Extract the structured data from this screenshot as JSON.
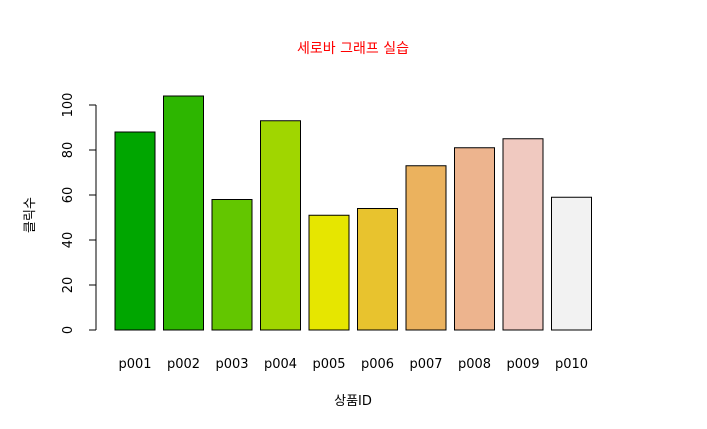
{
  "chart_data": {
    "type": "bar",
    "title": "세로바 그래프 실습",
    "xlabel": "상품ID",
    "ylabel": "클릭수",
    "categories": [
      "p001",
      "p002",
      "p003",
      "p004",
      "p005",
      "p006",
      "p007",
      "p008",
      "p009",
      "p010"
    ],
    "values": [
      88,
      104,
      58,
      93,
      51,
      54,
      73,
      81,
      85,
      59
    ],
    "colors": [
      "#00a600",
      "#2db600",
      "#63c600",
      "#a0d600",
      "#e6e600",
      "#e8c32e",
      "#ebb25e",
      "#edb48e",
      "#f0c9c0",
      "#f2f2f2"
    ],
    "y_ticks": [
      0,
      20,
      40,
      60,
      80,
      100
    ],
    "ylim": [
      0,
      104
    ],
    "title_color": "#ff0000",
    "grid": false,
    "legend": "none"
  }
}
